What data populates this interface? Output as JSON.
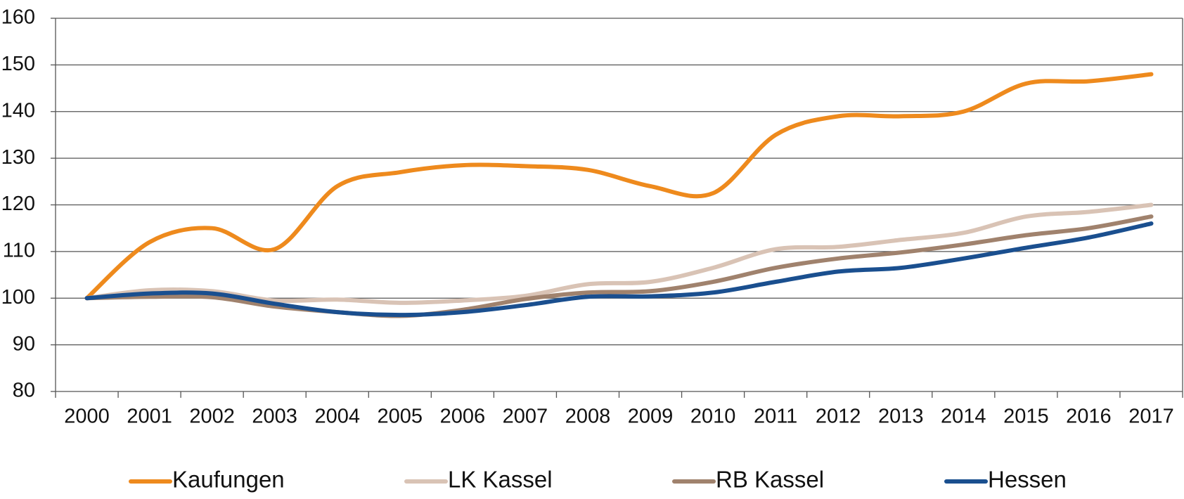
{
  "chart_data": {
    "type": "line",
    "categories": [
      "2000",
      "2001",
      "2002",
      "2003",
      "2004",
      "2005",
      "2006",
      "2007",
      "2008",
      "2009",
      "2010",
      "2011",
      "2012",
      "2013",
      "2014",
      "2015",
      "2016",
      "2017"
    ],
    "series": [
      {
        "name": "Kaufungen",
        "color": "#ee8a1d",
        "values": [
          100,
          112,
          115,
          110.5,
          124,
          127,
          128.5,
          128.3,
          127.5,
          124,
          122.5,
          135,
          139,
          139,
          140,
          146,
          146.5,
          148
        ]
      },
      {
        "name": "LK Kassel",
        "color": "#d9c3b5",
        "values": [
          100,
          101.7,
          101.5,
          99.5,
          99.7,
          99,
          99.5,
          100.5,
          103,
          103.5,
          106.5,
          110.5,
          111,
          112.5,
          114,
          117.5,
          118.5,
          120
        ]
      },
      {
        "name": "RB Kassel",
        "color": "#a0826d",
        "values": [
          100,
          100.3,
          100.2,
          98.2,
          97,
          96.2,
          97.5,
          99.8,
          101.2,
          101.5,
          103.5,
          106.5,
          108.5,
          109.8,
          111.5,
          113.5,
          115,
          117.5
        ]
      },
      {
        "name": "Hessen",
        "color": "#1a4f8f",
        "values": [
          100,
          101,
          101,
          98.8,
          97,
          96.4,
          97,
          98.5,
          100.3,
          100.4,
          101.2,
          103.5,
          105.7,
          106.5,
          108.5,
          110.8,
          113,
          116
        ]
      }
    ],
    "ylim": [
      80,
      160
    ],
    "yticks": [
      80,
      90,
      100,
      110,
      120,
      130,
      140,
      150,
      160
    ],
    "grid": true
  }
}
